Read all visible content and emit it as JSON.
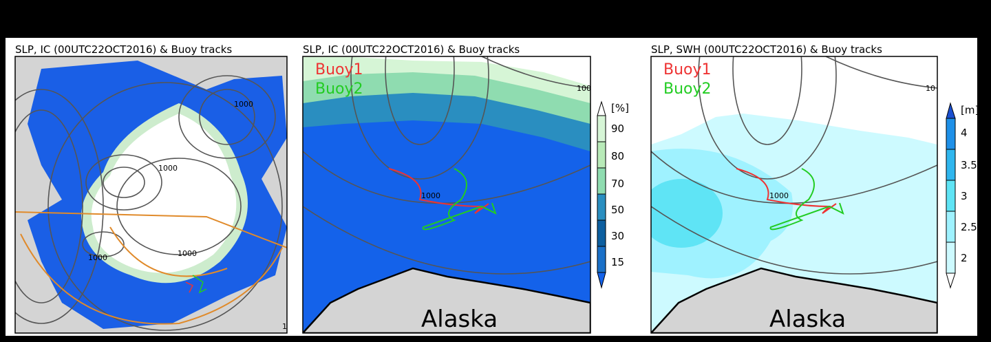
{
  "panels": [
    {
      "title": "SLP, IC (00UTC22OCT2016) & Buoy tracks",
      "contour_labels": [
        "1000",
        "1000",
        "1000",
        "1000",
        "1"
      ]
    },
    {
      "title": "SLP, IC (00UTC22OCT2016) & Buoy tracks",
      "legend": [
        "Buoy1",
        "Buoy2"
      ],
      "contour_labels": [
        "1000",
        "100"
      ],
      "place_label": "Alaska",
      "colorbar": {
        "unit": "[%]",
        "ticks": [
          90,
          80,
          70,
          50,
          30,
          15
        ]
      }
    },
    {
      "title": "SLP, SWH (00UTC22OCT2016) & Buoy tracks",
      "legend": [
        "Buoy1",
        "Buoy2"
      ],
      "contour_labels": [
        "1000",
        "10"
      ],
      "place_label": "Alaska",
      "colorbar": {
        "unit": "[m]",
        "ticks": [
          4,
          3.5,
          3,
          2.5,
          2
        ]
      }
    }
  ]
}
